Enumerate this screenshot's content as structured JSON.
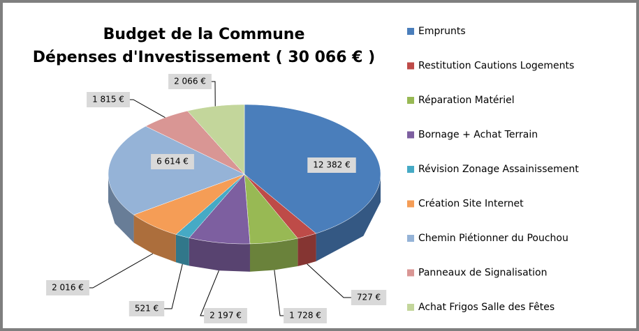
{
  "chart_data": {
    "type": "pie",
    "title": "Budget de la Commune",
    "subtitle": "Dépenses d'Investissement ( 30 066 € )",
    "categories": [
      "Emprunts",
      "Restitution Cautions Logements",
      "Réparation Matériel",
      "Bornage + Achat Terrain",
      "Révision Zonage Assainissement",
      "Création Site Internet",
      "Chemin Piétionner du Pouchou",
      "Panneaux de Signalisation",
      "Achat Frigos Salle des Fêtes"
    ],
    "values": [
      12382,
      727,
      1728,
      2197,
      521,
      2016,
      6614,
      1815,
      2066
    ],
    "value_labels": [
      "12 382 €",
      "727 €",
      "1 728 €",
      "2 197 €",
      "521 €",
      "2 016 €",
      "6 614 €",
      "1 815 €",
      "2 066 €"
    ],
    "colors": [
      "#4a7ebb",
      "#be4b48",
      "#98b954",
      "#7d5fa0",
      "#46aac5",
      "#f59d56",
      "#95b3d7",
      "#d99694",
      "#c3d69b"
    ],
    "legend": "right"
  }
}
